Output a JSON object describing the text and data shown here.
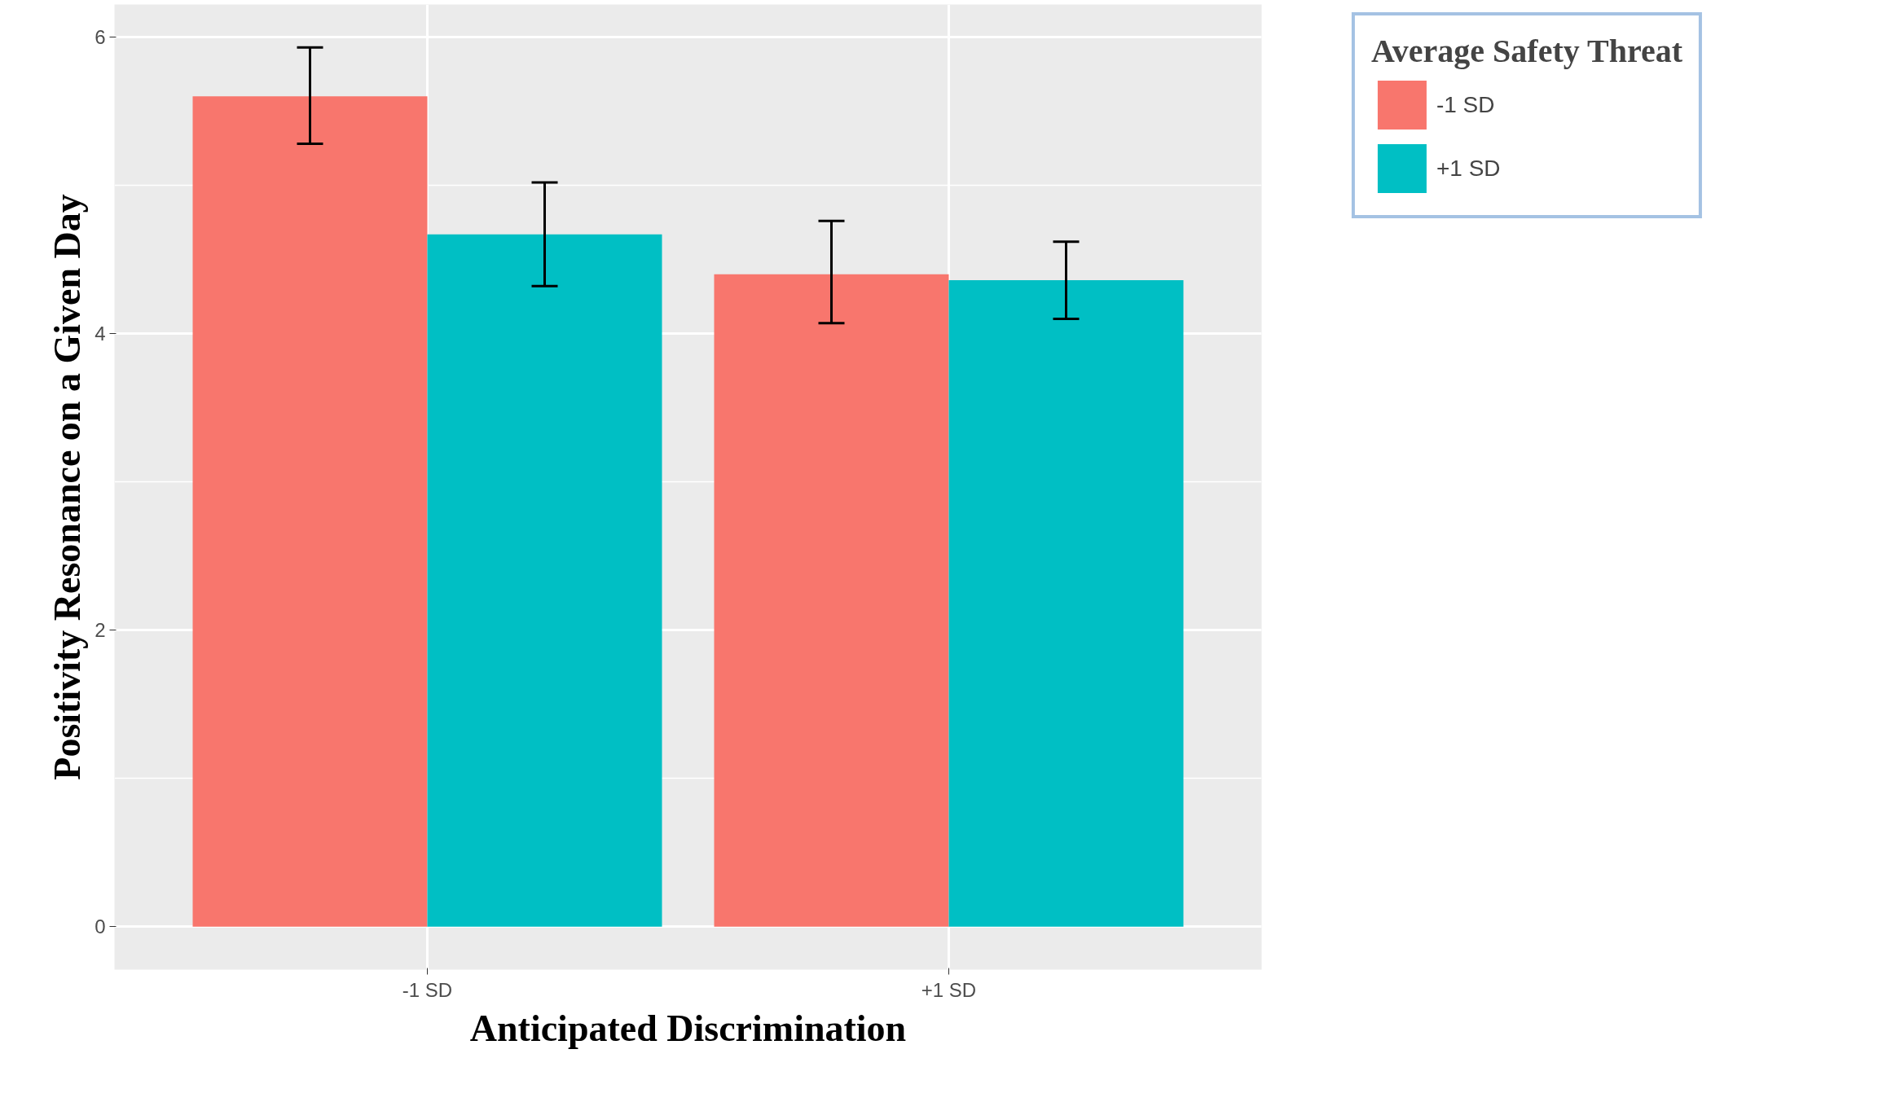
{
  "chart_data": {
    "type": "bar",
    "xlabel": "Anticipated Discrimination",
    "ylabel": "Positivity Resonance on a Given Day",
    "legend_title": "Average Safety Threat",
    "categories": [
      "-1 SD",
      "+1 SD"
    ],
    "series": [
      {
        "name": "-1 SD",
        "color": "#f8766d",
        "values": [
          5.6,
          4.4
        ],
        "errors": [
          [
            5.28,
            5.93
          ],
          [
            4.07,
            4.76
          ]
        ]
      },
      {
        "name": "+1 SD",
        "color": "#00bfc4",
        "values": [
          4.67,
          4.36
        ],
        "errors": [
          [
            4.32,
            5.02
          ],
          [
            4.1,
            4.62
          ]
        ]
      }
    ],
    "ylim": [
      -0.29,
      6.22
    ],
    "yticks": [
      0,
      2,
      4,
      6
    ],
    "grid": true,
    "legend": "top right"
  }
}
